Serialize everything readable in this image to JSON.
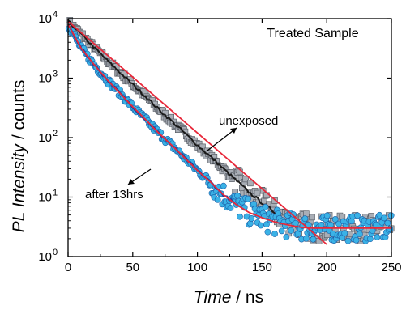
{
  "chart_data": {
    "type": "scatter",
    "title": "Treated  Sample",
    "xlabel": {
      "italic": "Time",
      "rest": " / ns"
    },
    "ylabel": {
      "italic": "PL Intensity",
      "rest": " / counts"
    },
    "xlim": [
      0,
      250
    ],
    "ylim": [
      1,
      10000
    ],
    "yscale": "log",
    "grid": false,
    "x_ticks": [
      {
        "value": 0,
        "label": "0"
      },
      {
        "value": 50,
        "label": "50"
      },
      {
        "value": 100,
        "label": "100"
      },
      {
        "value": 150,
        "label": "150"
      },
      {
        "value": 200,
        "label": "200"
      },
      {
        "value": 250,
        "label": "250"
      }
    ],
    "y_ticks": [
      {
        "value": 1,
        "base": "10",
        "exp": "0"
      },
      {
        "value": 10,
        "base": "10",
        "exp": "1"
      },
      {
        "value": 100,
        "base": "10",
        "exp": "2"
      },
      {
        "value": 1000,
        "base": "10",
        "exp": "3"
      },
      {
        "value": 10000,
        "base": "10",
        "exp": "4"
      }
    ],
    "series": [
      {
        "name": "unexposed",
        "marker": "square",
        "marker_color": "#a9aeb6",
        "fit_color": "#e8283a",
        "x": [
          0,
          10,
          20,
          30,
          40,
          50,
          60,
          70,
          80,
          90,
          100,
          110,
          120,
          130,
          140,
          150,
          160,
          170,
          180,
          190,
          200,
          210,
          220,
          230,
          240,
          250
        ],
        "y": [
          9000,
          5500,
          3300,
          2000,
          1250,
          780,
          490,
          300,
          190,
          120,
          75,
          48,
          30,
          19,
          12,
          8,
          5.5,
          4,
          3.5,
          3,
          3,
          3,
          3,
          3,
          3,
          3
        ],
        "fit": {
          "x": [
            0,
            200
          ],
          "y": [
            9000,
            1.6
          ]
        }
      },
      {
        "name": "after 13hrs",
        "marker": "circle",
        "marker_color": "#3ab2e6",
        "fit_color": "#e8283a",
        "x": [
          0,
          10,
          20,
          30,
          40,
          50,
          60,
          70,
          80,
          90,
          100,
          110,
          120,
          130,
          140,
          150,
          160,
          170,
          180,
          190,
          200,
          210,
          220,
          230,
          240,
          250
        ],
        "y": [
          8000,
          3200,
          1700,
          950,
          560,
          330,
          200,
          120,
          75,
          46,
          28,
          18,
          11,
          7.5,
          5.5,
          4.5,
          3.8,
          3.4,
          3.1,
          3,
          3,
          3,
          3,
          3,
          3,
          3
        ]
      }
    ],
    "annotations": [
      {
        "text": "unexposed",
        "points_to_series": "unexposed"
      },
      {
        "text": "after 13hrs",
        "points_to_series": "after 13hrs"
      }
    ]
  }
}
